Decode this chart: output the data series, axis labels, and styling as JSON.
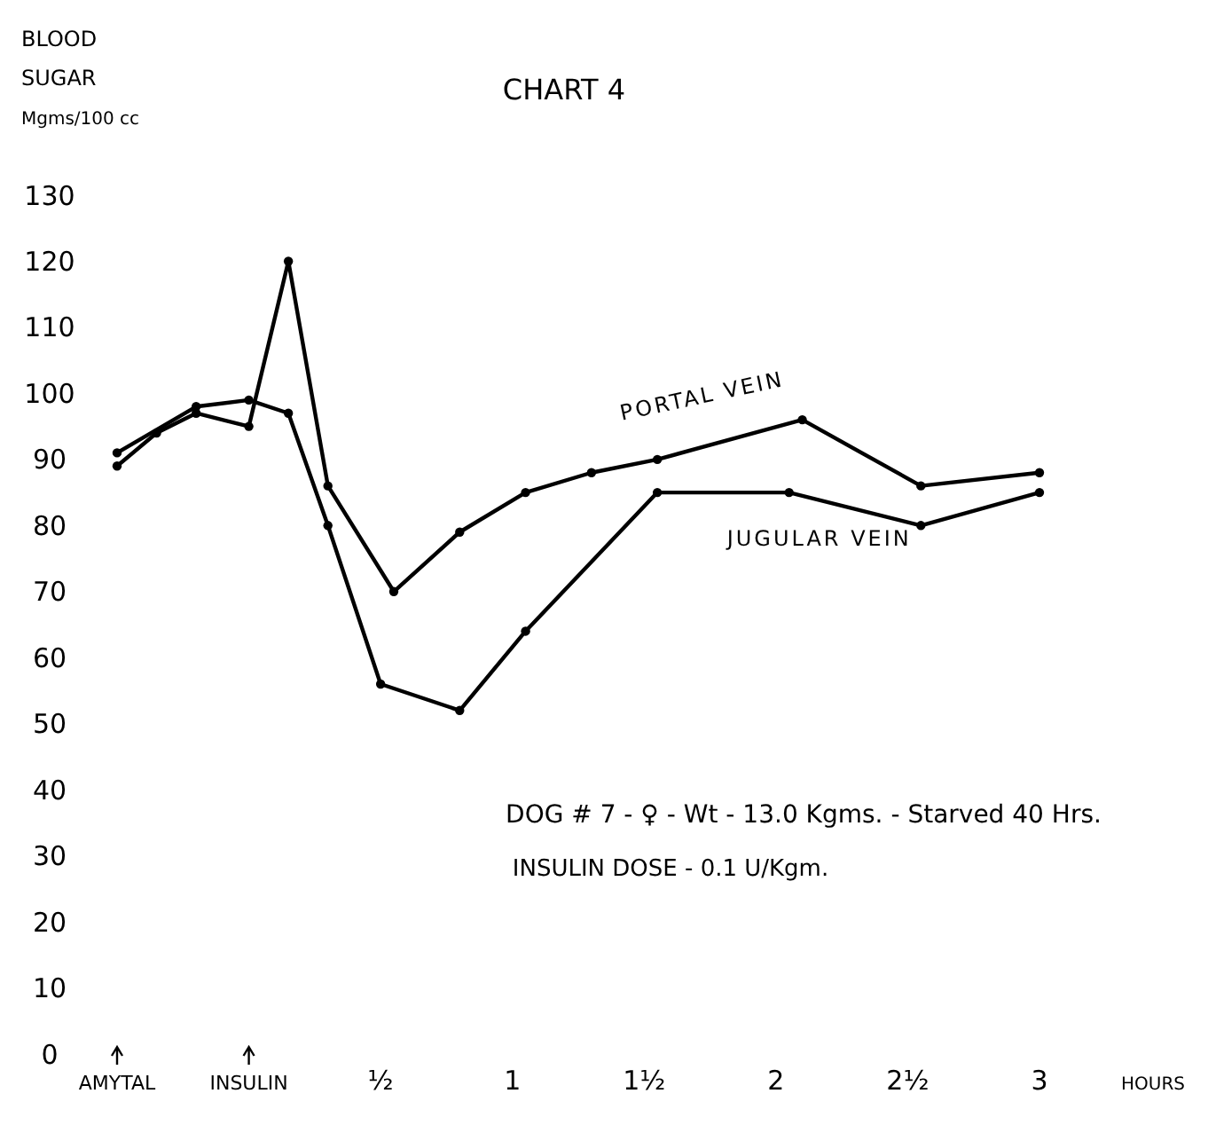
{
  "chart_data": {
    "type": "line",
    "title": "CHART 4",
    "ylabel": "BLOOD\nSUGAR\nMgms/100 cc",
    "xlabel": "HOURS",
    "xlim": [
      -0.5,
      3
    ],
    "ylim": [
      0,
      130
    ],
    "xticks": [
      {
        "value": -0.5,
        "label": "AMYTAL"
      },
      {
        "value": 0,
        "label": "INSULIN"
      },
      {
        "value": 0.5,
        "label": "½"
      },
      1,
      {
        "value": 1.5,
        "label": "1½"
      },
      2,
      {
        "value": 2.5,
        "label": "2½"
      },
      3
    ],
    "yticks": [
      0,
      10,
      20,
      30,
      40,
      50,
      60,
      70,
      80,
      90,
      100,
      110,
      120,
      130
    ],
    "grid": false,
    "marker": "circle",
    "line_style": "solid",
    "annotations": [
      "DOG # 7 - ♀ - Wt - 13.0 Kgms. - Starved 40 Hrs.",
      "INSULIN DOSE - 0.1 U/Kgm."
    ],
    "series": [
      {
        "name": "PORTAL VEIN",
        "color": "#000000",
        "x": [
          -0.5,
          -0.35,
          -0.2,
          0,
          0.15,
          0.3,
          0.55,
          0.8,
          1.05,
          1.3,
          1.55,
          2.1,
          2.55,
          3
        ],
        "values": [
          89,
          94,
          97,
          95,
          120,
          86,
          70,
          79,
          85,
          88,
          90,
          96,
          86,
          88
        ]
      },
      {
        "name": "JUGULAR VEIN",
        "color": "#000000",
        "x": [
          -0.5,
          -0.2,
          0,
          0.15,
          0.3,
          0.5,
          0.8,
          1.05,
          1.55,
          2.05,
          2.55,
          3
        ],
        "values": [
          91,
          98,
          99,
          97,
          80,
          56,
          52,
          64,
          85,
          85,
          80,
          85
        ]
      }
    ]
  }
}
